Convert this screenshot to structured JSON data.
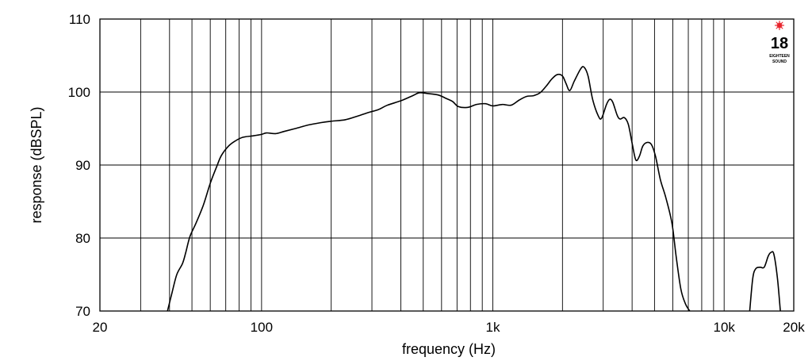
{
  "chart_data": {
    "type": "line",
    "xlabel": "frequency (Hz)",
    "ylabel": "response (dBSPL)",
    "xscale": "log",
    "xlim": [
      20,
      20000
    ],
    "ylim": [
      70,
      110
    ],
    "grid": true,
    "xtick_labels": [
      {
        "value": 20,
        "label": "20"
      },
      {
        "value": 100,
        "label": "100"
      },
      {
        "value": 1000,
        "label": "1k"
      },
      {
        "value": 10000,
        "label": "10k"
      },
      {
        "value": 20000,
        "label": "20k"
      }
    ],
    "ytick_labels": [
      {
        "value": 70,
        "label": "70"
      },
      {
        "value": 80,
        "label": "80"
      },
      {
        "value": 90,
        "label": "90"
      },
      {
        "value": 100,
        "label": "100"
      },
      {
        "value": 110,
        "label": "110"
      }
    ],
    "x_gridlines": [
      30,
      40,
      50,
      60,
      70,
      80,
      90,
      100,
      200,
      300,
      400,
      500,
      600,
      700,
      800,
      900,
      1000,
      2000,
      3000,
      4000,
      5000,
      6000,
      7000,
      8000,
      9000,
      10000
    ],
    "y_gridlines": [
      80,
      90,
      100
    ],
    "series": [
      {
        "segments": [
          [
            [
              39.2,
              70
            ],
            [
              41,
              72.5
            ],
            [
              43,
              75
            ],
            [
              45.5,
              76.5
            ],
            [
              47,
              78
            ],
            [
              49,
              80.2
            ],
            [
              52,
              82
            ],
            [
              56,
              84.5
            ],
            [
              60,
              87.5
            ],
            [
              64,
              89.8
            ],
            [
              67,
              91.3
            ],
            [
              72,
              92.6
            ],
            [
              77,
              93.3
            ],
            [
              83,
              93.8
            ],
            [
              92,
              94
            ],
            [
              100,
              94.2
            ],
            [
              105,
              94.4
            ],
            [
              115,
              94.3
            ],
            [
              125,
              94.6
            ],
            [
              140,
              95
            ],
            [
              160,
              95.5
            ],
            [
              180,
              95.8
            ],
            [
              200,
              96
            ],
            [
              230,
              96.2
            ],
            [
              260,
              96.7
            ],
            [
              290,
              97.2
            ],
            [
              320,
              97.6
            ],
            [
              350,
              98.2
            ],
            [
              400,
              98.8
            ],
            [
              450,
              99.5
            ],
            [
              480,
              99.9
            ],
            [
              520,
              99.8
            ],
            [
              580,
              99.6
            ],
            [
              630,
              99.1
            ],
            [
              670,
              98.7
            ],
            [
              710,
              98
            ],
            [
              780,
              97.9
            ],
            [
              850,
              98.3
            ],
            [
              930,
              98.4
            ],
            [
              1000,
              98.1
            ],
            [
              1100,
              98.3
            ],
            [
              1200,
              98.2
            ],
            [
              1300,
              98.9
            ],
            [
              1400,
              99.4
            ],
            [
              1500,
              99.5
            ],
            [
              1600,
              99.9
            ],
            [
              1700,
              100.8
            ],
            [
              1800,
              101.8
            ],
            [
              1900,
              102.4
            ],
            [
              2000,
              102.2
            ],
            [
              2070,
              101.2
            ],
            [
              2150,
              100.2
            ],
            [
              2250,
              101.5
            ],
            [
              2400,
              103.2
            ],
            [
              2480,
              103.4
            ],
            [
              2580,
              102.2
            ],
            [
              2700,
              99
            ],
            [
              2850,
              96.8
            ],
            [
              2950,
              96.4
            ],
            [
              3100,
              98.3
            ],
            [
              3200,
              99
            ],
            [
              3300,
              98.6
            ],
            [
              3450,
              96.8
            ],
            [
              3550,
              96.3
            ],
            [
              3700,
              96.5
            ],
            [
              3850,
              95.6
            ],
            [
              4000,
              93
            ],
            [
              4150,
              90.7
            ],
            [
              4300,
              91.2
            ],
            [
              4450,
              92.6
            ],
            [
              4650,
              93.1
            ],
            [
              4850,
              92.8
            ],
            [
              5050,
              91.2
            ],
            [
              5300,
              88
            ],
            [
              5600,
              85.5
            ],
            [
              5950,
              82
            ],
            [
              6200,
              77.5
            ],
            [
              6500,
              73
            ],
            [
              6800,
              71
            ],
            [
              7100,
              70
            ]
          ],
          [
            [
              12900,
              70
            ],
            [
              13300,
              74.5
            ],
            [
              13700,
              75.8
            ],
            [
              14300,
              76
            ],
            [
              14900,
              76
            ],
            [
              15500,
              77.5
            ],
            [
              15900,
              78
            ],
            [
              16400,
              77.8
            ],
            [
              17000,
              74.5
            ],
            [
              17500,
              70
            ]
          ]
        ]
      }
    ],
    "logo": {
      "number": "18",
      "line1": "EIGHTEEN",
      "line2": "SOUND",
      "star_color": "#e8242c"
    }
  }
}
